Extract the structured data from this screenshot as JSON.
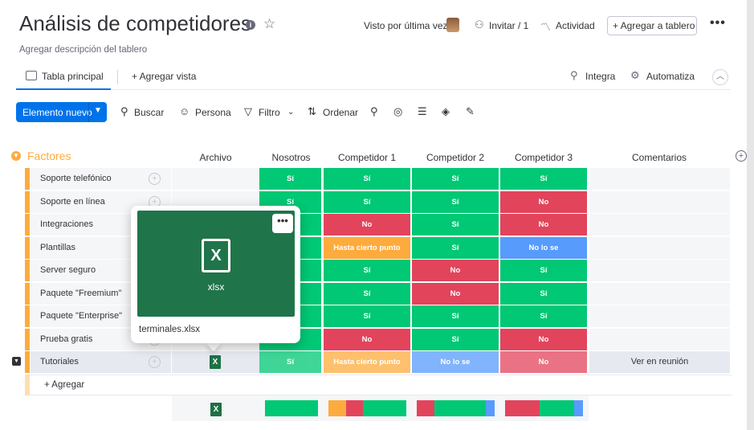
{
  "board": {
    "title": "Análisis de competidores",
    "description": "Agregar descripción del tablero",
    "last_seen_label": "Visto por última vez",
    "invite_label": "Invitar / 1",
    "activity_label": "Actividad",
    "add_to_board_label": "+ Agregar a tablero",
    "more_label": "•••"
  },
  "views": {
    "main_tab": "Tabla principal",
    "add_view": "+  Agregar vista",
    "integra": "Integra",
    "automatiza": "Automatiza"
  },
  "toolbar": {
    "new_item": "Elemento nuevo",
    "search": "Buscar",
    "person": "Persona",
    "filter": "Filtro",
    "sort": "Ordenar"
  },
  "group": {
    "title": "Factores",
    "color": "#fdab3d"
  },
  "columns": [
    "Archivo",
    "Nosotros",
    "Competidor 1",
    "Competidor 2",
    "Competidor 3",
    "Comentarios"
  ],
  "status_colors": {
    "Sí": "#00c875",
    "No": "#e2445c",
    "Hasta cierto punto": "#fdab3d",
    "No lo se": "#579bfc"
  },
  "rows": [
    {
      "name": "Soporte telefónico",
      "nosotros": "Sí",
      "c1": "Sí",
      "c2": "Sí",
      "c3": "Sí",
      "comment": ""
    },
    {
      "name": "Soporte en línea",
      "nosotros": "Sí",
      "c1": "Sí",
      "c2": "Sí",
      "c3": "No",
      "comment": ""
    },
    {
      "name": "Integraciones",
      "nosotros": "Sí",
      "c1": "No",
      "c2": "Sí",
      "c3": "No",
      "comment": ""
    },
    {
      "name": "Plantillas",
      "nosotros": "Sí",
      "c1": "Hasta cierto punto",
      "c2": "Sí",
      "c3": "No lo se",
      "comment": ""
    },
    {
      "name": "Server seguro",
      "nosotros": "Sí",
      "c1": "Sí",
      "c2": "No",
      "c3": "Sí",
      "comment": ""
    },
    {
      "name": "Paquete \"Freemium\"",
      "nosotros": "Sí",
      "c1": "Sí",
      "c2": "No",
      "c3": "Sí",
      "comment": ""
    },
    {
      "name": "Paquete \"Enterprise\"",
      "nosotros": "Sí",
      "c1": "Sí",
      "c2": "Sí",
      "c3": "Sí",
      "comment": ""
    },
    {
      "name": "Prueba gratis",
      "nosotros": "Sí",
      "c1": "No",
      "c2": "Sí",
      "c3": "No",
      "comment": ""
    },
    {
      "name": "Tutoriales",
      "nosotros": "Sí",
      "c1": "Hasta cierto punto",
      "c2": "No lo se",
      "c3": "No",
      "comment": "Ver en reunión"
    }
  ],
  "add_item_label": "+ Agregar",
  "file_popup": {
    "extension": "xlsx",
    "filename": "terminales.xlsx",
    "more_label": "•••"
  }
}
